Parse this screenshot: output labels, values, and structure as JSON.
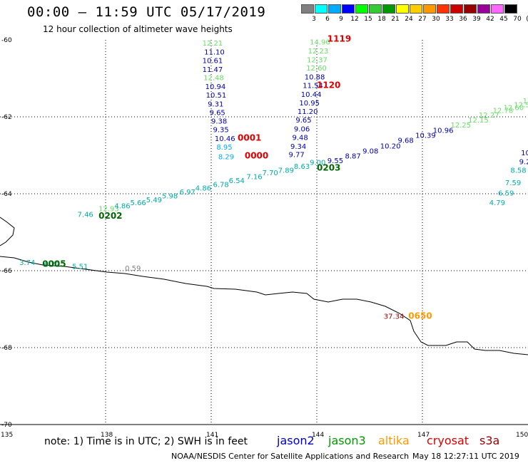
{
  "header": {
    "title": "00:00 – 11:59 UTC 05/17/2019",
    "subtitle": "12 hour collection of altimeter wave heights"
  },
  "colorbar": {
    "labels": [
      "3",
      "6",
      "9",
      "12",
      "15",
      "18",
      "21",
      "24",
      "27",
      "30",
      "33",
      "36",
      "39",
      "42",
      "45",
      "70",
      "(ft)"
    ],
    "colors": [
      "#808080",
      "#00ffff",
      "#00aaff",
      "#0000ff",
      "#00ff00",
      "#33cc33",
      "#009900",
      "#ffff00",
      "#ffcc00",
      "#ff9900",
      "#ff3300",
      "#cc0000",
      "#990000",
      "#990099",
      "#ff66ff",
      "#000000"
    ]
  },
  "axes": {
    "lat_labels": [
      "-60",
      "-62",
      "-64",
      "-66",
      "-68",
      "-70"
    ],
    "lon_labels": [
      "135",
      "138",
      "141",
      "144",
      "147",
      "150"
    ]
  },
  "tracks": [
    {
      "id": "pass-left-vertical",
      "color_class": "mixed",
      "labels": [
        {
          "text": "12.21",
          "color": "#66dd66",
          "lat": -60.15,
          "lon": 140.75
        },
        {
          "text": "11.10",
          "color": "#0000aa",
          "lat": -60.38,
          "lon": 140.8
        },
        {
          "text": "10.61",
          "color": "#0000aa",
          "lat": -60.6,
          "lon": 140.75
        },
        {
          "text": "11.47",
          "color": "#0000aa",
          "lat": -60.83,
          "lon": 140.75
        },
        {
          "text": "12.48",
          "color": "#66dd66",
          "lat": -61.05,
          "lon": 140.78
        },
        {
          "text": "10.94",
          "color": "#0000aa",
          "lat": -61.28,
          "lon": 140.83
        },
        {
          "text": "10.51",
          "color": "#0000aa",
          "lat": -61.5,
          "lon": 140.85
        },
        {
          "text": "9.31",
          "color": "#0000aa",
          "lat": -61.73,
          "lon": 140.9
        },
        {
          "text": "9.65",
          "color": "#0000aa",
          "lat": -61.95,
          "lon": 140.95
        },
        {
          "text": "9.38",
          "color": "#0000aa",
          "lat": -62.18,
          "lon": 141.0
        },
        {
          "text": "9.35",
          "color": "#0000aa",
          "lat": -62.4,
          "lon": 141.05
        },
        {
          "text": "10.46",
          "color": "#0000aa",
          "lat": -62.63,
          "lon": 141.1
        },
        {
          "text": "8.95",
          "color": "#00aaff",
          "lat": -62.85,
          "lon": 141.15
        },
        {
          "text": "8.29",
          "color": "#00aaff",
          "lat": -63.1,
          "lon": 141.2
        }
      ]
    },
    {
      "id": "pass-right-vertical",
      "color_class": "mixed",
      "labels": [
        {
          "text": "14.96",
          "color": "#66dd66",
          "lat": -60.12,
          "lon": 143.8
        },
        {
          "text": "12.23",
          "color": "#66dd66",
          "lat": -60.35,
          "lon": 143.75
        },
        {
          "text": "12.37",
          "color": "#66dd66",
          "lat": -60.58,
          "lon": 143.72
        },
        {
          "text": "12.60",
          "color": "#66dd66",
          "lat": -60.8,
          "lon": 143.7
        },
        {
          "text": "10.88",
          "color": "#0000aa",
          "lat": -61.03,
          "lon": 143.65
        },
        {
          "text": "11.54",
          "color": "#0000aa",
          "lat": -61.25,
          "lon": 143.6
        },
        {
          "text": "10.44",
          "color": "#0000aa",
          "lat": -61.48,
          "lon": 143.55
        },
        {
          "text": "10.95",
          "color": "#0000aa",
          "lat": -61.7,
          "lon": 143.5
        },
        {
          "text": "11.20",
          "color": "#0000aa",
          "lat": -61.93,
          "lon": 143.45
        },
        {
          "text": "9.65",
          "color": "#0000aa",
          "lat": -62.15,
          "lon": 143.4
        },
        {
          "text": "9.06",
          "color": "#0000aa",
          "lat": -62.38,
          "lon": 143.35
        },
        {
          "text": "9.48",
          "color": "#0000aa",
          "lat": -62.6,
          "lon": 143.3
        },
        {
          "text": "9.34",
          "color": "#0000aa",
          "lat": -62.83,
          "lon": 143.25
        },
        {
          "text": "9.77",
          "color": "#0000aa",
          "lat": -63.05,
          "lon": 143.2
        }
      ]
    },
    {
      "id": "pass-diagonal-upper",
      "labels": [
        {
          "text": "9.55",
          "color": "#0000aa",
          "lat": -63.2,
          "lon": 144.3
        },
        {
          "text": "8.87",
          "color": "#0000aa",
          "lat": -63.08,
          "lon": 144.8
        },
        {
          "text": "9.08",
          "color": "#0000aa",
          "lat": -62.95,
          "lon": 145.3
        },
        {
          "text": "10.20",
          "color": "#0000aa",
          "lat": -62.82,
          "lon": 145.8
        },
        {
          "text": "9.68",
          "color": "#0000aa",
          "lat": -62.68,
          "lon": 146.3
        },
        {
          "text": "10.39",
          "color": "#0000aa",
          "lat": -62.55,
          "lon": 146.8
        },
        {
          "text": "10.96",
          "color": "#0000aa",
          "lat": -62.42,
          "lon": 147.3
        },
        {
          "text": "12.25",
          "color": "#66dd66",
          "lat": -62.28,
          "lon": 147.8
        },
        {
          "text": "12.15",
          "color": "#66dd66",
          "lat": -62.15,
          "lon": 148.3
        },
        {
          "text": "12.27",
          "color": "#66dd66",
          "lat": -62.02,
          "lon": 148.6
        },
        {
          "text": "12.78",
          "color": "#66dd66",
          "lat": -61.9,
          "lon": 149.0
        },
        {
          "text": "12.60",
          "color": "#66dd66",
          "lat": -61.82,
          "lon": 149.3
        },
        {
          "text": "12.54",
          "color": "#66dd66",
          "lat": -61.75,
          "lon": 149.6
        },
        {
          "text": "12.41",
          "color": "#66dd66",
          "lat": -61.65,
          "lon": 149.85
        },
        {
          "text": "12.3",
          "color": "#66dd66",
          "lat": -61.55,
          "lon": 150.2
        }
      ]
    },
    {
      "id": "pass-diagonal-lower",
      "labels": [
        {
          "text": "7.46",
          "color": "#00aaaa",
          "lat": -64.6,
          "lon": 137.2
        },
        {
          "text": "12.93",
          "color": "#66dd66",
          "lat": -64.45,
          "lon": 137.8
        },
        {
          "text": "4.86",
          "color": "#00aaaa",
          "lat": -64.38,
          "lon": 138.25
        },
        {
          "text": "5.66",
          "color": "#00aaaa",
          "lat": -64.3,
          "lon": 138.7
        },
        {
          "text": "5.49",
          "color": "#00aaaa",
          "lat": -64.22,
          "lon": 139.15
        },
        {
          "text": "5.98",
          "color": "#00aaaa",
          "lat": -64.12,
          "lon": 139.6
        },
        {
          "text": "6.97",
          "color": "#00aaaa",
          "lat": -64.02,
          "lon": 140.1
        },
        {
          "text": "4.86",
          "color": "#00aaaa",
          "lat": -63.92,
          "lon": 140.55
        },
        {
          "text": "6.78",
          "color": "#00aaaa",
          "lat": -63.82,
          "lon": 141.05
        },
        {
          "text": "6.54",
          "color": "#00aaaa",
          "lat": -63.72,
          "lon": 141.5
        },
        {
          "text": "7.16",
          "color": "#00aaaa",
          "lat": -63.62,
          "lon": 142.0
        },
        {
          "text": "7.70",
          "color": "#00aaaa",
          "lat": -63.52,
          "lon": 142.45
        },
        {
          "text": "7.89",
          "color": "#00aaaa",
          "lat": -63.45,
          "lon": 142.9
        },
        {
          "text": "8.63",
          "color": "#00aaaa",
          "lat": -63.35,
          "lon": 143.35
        },
        {
          "text": "9.00",
          "color": "#00aaaa",
          "lat": -63.25,
          "lon": 143.8
        }
      ]
    },
    {
      "id": "pass-right-edge",
      "labels": [
        {
          "text": "10",
          "color": "#0000aa",
          "lat": -63.0,
          "lon": 149.8
        },
        {
          "text": "9.2",
          "color": "#0000aa",
          "lat": -63.23,
          "lon": 149.75
        },
        {
          "text": "8.58",
          "color": "#00aaaa",
          "lat": -63.45,
          "lon": 149.5
        },
        {
          "text": "7.59",
          "color": "#00aaaa",
          "lat": -63.78,
          "lon": 149.35
        },
        {
          "text": "6.59",
          "color": "#00aaaa",
          "lat": -64.05,
          "lon": 149.15
        },
        {
          "text": "4.79",
          "color": "#00aaaa",
          "lat": -64.3,
          "lon": 148.9
        }
      ]
    },
    {
      "id": "pass-coast-left",
      "labels": [
        {
          "text": "3.74",
          "color": "#00aaaa",
          "lat": -65.85,
          "lon": 135.55
        },
        {
          "text": "6.72",
          "color": "#00aaaa",
          "lat": -65.9,
          "lon": 136.25
        },
        {
          "text": "5.51",
          "color": "#00aaaa",
          "lat": -65.95,
          "lon": 137.05
        },
        {
          "text": "0.59",
          "color": "#808080",
          "lat": -66.0,
          "lon": 138.55
        },
        {
          "text": "37.34",
          "color": "#990000",
          "lat": -67.25,
          "lon": 145.9
        }
      ]
    }
  ],
  "time_labels": [
    {
      "text": "1119",
      "color": "#dd0000",
      "lat": -60.05,
      "lon": 144.3
    },
    {
      "text": "1120",
      "color": "#dd0000",
      "lat": -61.25,
      "lon": 144.0
    },
    {
      "text": "0001",
      "color": "#dd0000",
      "lat": -62.62,
      "lon": 141.75
    },
    {
      "text": "0000",
      "color": "#dd0000",
      "lat": -63.08,
      "lon": 141.95
    },
    {
      "text": "0203",
      "color": "#006600",
      "lat": -63.4,
      "lon": 144.0
    },
    {
      "text": "0202",
      "color": "#006600",
      "lat": -64.65,
      "lon": 137.8
    },
    {
      "text": "0005",
      "color": "#006600",
      "lat": -65.9,
      "lon": 136.2
    },
    {
      "text": "0650",
      "color": "#ff9900",
      "lat": -67.25,
      "lon": 146.6
    }
  ],
  "note": "note: 1) Time is in UTC; 2) SWH is in feet",
  "legend": {
    "jason2": "jason2",
    "jason2_color": "#0000cc",
    "jason3": "jason3",
    "jason3_color": "#009900",
    "altika": "altika",
    "altika_color": "#ff9900",
    "cryosat": "cryosat",
    "cryosat_color": "#dd0000",
    "s3a": "s3a",
    "s3a_color": "#990000"
  },
  "credit": "NOAA/NESDIS Center for Satellite Applications and Research",
  "timestamp": "May 18 12:27:11 UTC 2019"
}
